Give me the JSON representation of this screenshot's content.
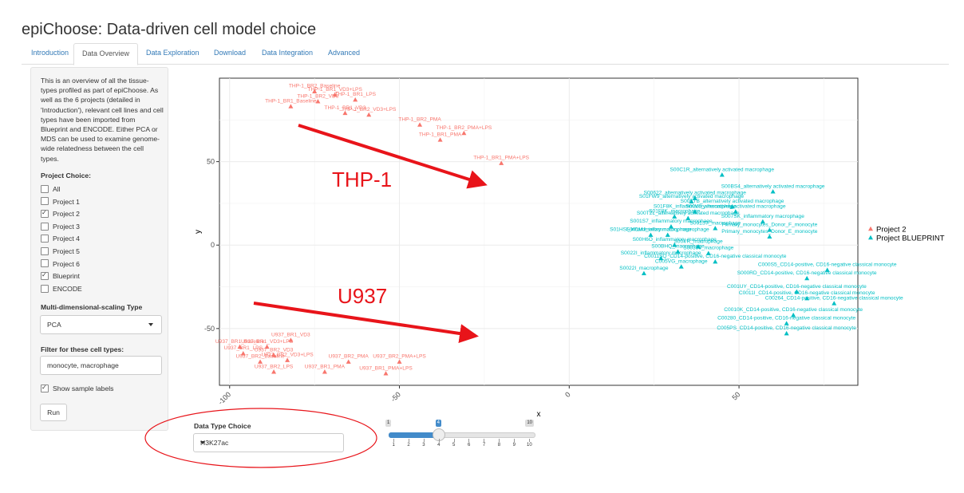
{
  "app_title": "epiChoose: Data-driven cell model choice",
  "tabs": [
    "Introduction",
    "Data Overview",
    "Data Exploration",
    "Download",
    "Data Integration",
    "Advanced"
  ],
  "active_tab": "Data Overview",
  "sidebar": {
    "description": "This is an overview of all the tissue-types profiled as part of epiChoose. As well as the 6 projects (detailed in 'Introduction'), relevant cell lines and cell types have been imported from Blueprint and ENCODE. Either PCA or MDS can be used to examine genome-wide relatedness between the cell types.",
    "project_choice_label": "Project Choice:",
    "projects": [
      {
        "label": "All",
        "checked": false
      },
      {
        "label": "Project 1",
        "checked": false
      },
      {
        "label": "Project 2",
        "checked": true
      },
      {
        "label": "Project 3",
        "checked": false
      },
      {
        "label": "Project 4",
        "checked": false
      },
      {
        "label": "Project 5",
        "checked": false
      },
      {
        "label": "Project 6",
        "checked": false
      },
      {
        "label": "Blueprint",
        "checked": true
      },
      {
        "label": "ENCODE",
        "checked": false
      }
    ],
    "mds_label": "Multi-dimensional-scaling Type",
    "mds_value": "PCA",
    "filter_label": "Filter for these cell types:",
    "filter_value": "monocyte, macrophage",
    "show_labels": "Show sample labels",
    "show_labels_checked": true,
    "run_label": "Run"
  },
  "data_type": {
    "label": "Data Type Choice",
    "value": "H3K27ac"
  },
  "slider": {
    "min": 1,
    "max": 10,
    "value": 4,
    "ticks": [
      "1",
      "2",
      "3",
      "4",
      "5",
      "6",
      "7",
      "8",
      "9",
      "10"
    ]
  },
  "annotations": {
    "thp1": "THP-1",
    "u937": "U937"
  },
  "colors": {
    "project2": "#f8766d",
    "blueprint": "#00bfc4",
    "annotation": "#e8141a"
  },
  "chart_data": {
    "type": "scatter",
    "xlabel": "x",
    "ylabel": "y",
    "xlim": [
      -103,
      85
    ],
    "ylim": [
      -84,
      100
    ],
    "xticks": [
      -100,
      -50,
      0,
      50
    ],
    "yticks": [
      -50,
      0,
      50
    ],
    "legend": "right",
    "grid": true,
    "series": [
      {
        "name": "Project 2",
        "points": [
          {
            "label": "THP-1_BR2_Baseline",
            "x": -75.0,
            "y": 92.0
          },
          {
            "label": "THP-1_BR1_VD3+LPS",
            "x": -69.0,
            "y": 90.0
          },
          {
            "label": "THP-1_BR2_VD3",
            "x": -74.0,
            "y": 86.0
          },
          {
            "label": "THP-1_BR1_LPS",
            "x": -63.0,
            "y": 87.0
          },
          {
            "label": "THP-1_BR1_Baseline",
            "x": -82.0,
            "y": 83.0
          },
          {
            "label": "THP-1_BR1_VD3",
            "x": -66.0,
            "y": 79.0
          },
          {
            "label": "THP-1_BR2_VD3+LPS",
            "x": -59.0,
            "y": 78.0
          },
          {
            "label": "THP-1_BR2_PMA",
            "x": -44.0,
            "y": 72.0
          },
          {
            "label": "THP-1_BR2_PMA+LPS",
            "x": -31.0,
            "y": 67.0
          },
          {
            "label": "THP-1_BR1_PMA",
            "x": -38.0,
            "y": 63.0
          },
          {
            "label": "THP-1_BR1_PMA+LPS",
            "x": -20.0,
            "y": 49.0
          },
          {
            "label": "U937_BR1_VD3",
            "x": -82.0,
            "y": -57.0
          },
          {
            "label": "U937_BR1_Baseline",
            "x": -97.0,
            "y": -61.0
          },
          {
            "label": "U937_BR1_VD3+LPS",
            "x": -89.0,
            "y": -61.0
          },
          {
            "label": "U937_BR1_LPS",
            "x": -96.0,
            "y": -65.0
          },
          {
            "label": "U937_BR2_VD3",
            "x": -87.0,
            "y": -66.0
          },
          {
            "label": "U937_BR2_VD3+LPS",
            "x": -83.0,
            "y": -69.0
          },
          {
            "label": "U937_BR2_Baseline",
            "x": -91.0,
            "y": -70.0
          },
          {
            "label": "U937_BR2_LPS",
            "x": -87.0,
            "y": -76.0
          },
          {
            "label": "U937_BR2_PMA",
            "x": -65.0,
            "y": -70.0
          },
          {
            "label": "U937_BR1_PMA",
            "x": -72.0,
            "y": -76.0
          },
          {
            "label": "U937_BR2_PMA+LPS",
            "x": -50.0,
            "y": -70.0
          },
          {
            "label": "U937_BR1_PMA+LPS",
            "x": -54.0,
            "y": -77.0
          }
        ]
      },
      {
        "name": "Project BLUEPRINT",
        "points": [
          {
            "label": "S00C1R_alternatively activated macrophage",
            "x": 45.0,
            "y": 42.0
          },
          {
            "label": "S00BS4_alternatively activated macrophage",
            "x": 60.0,
            "y": 32.0
          },
          {
            "label": "S00622_alternatively activated macrophage",
            "x": 37.0,
            "y": 28.0
          },
          {
            "label": "S01FW9_alternatively activated macrophage",
            "x": 36.0,
            "y": 26.0
          },
          {
            "label": "S00FTB_alternatively activated macrophage",
            "x": 48.0,
            "y": 23.0
          },
          {
            "label": "S01F8K_inflammatory macrophage",
            "x": 37.0,
            "y": 20.0
          },
          {
            "label": "S00VII_alternatively activated macrophage",
            "x": 49.0,
            "y": 20.0
          },
          {
            "label": "S01F8K_macrophage",
            "x": 31.0,
            "y": 17.0
          },
          {
            "label": "S00T2L_alternatively activated macrophage",
            "x": 35.0,
            "y": 16.0
          },
          {
            "label": "S007SK_inflammatory macrophage",
            "x": 57.0,
            "y": 14.0
          },
          {
            "label": "S001S7_inflammatory macrophage",
            "x": 30.0,
            "y": 11.0
          },
          {
            "label": "S001S7_macrophage",
            "x": 43.0,
            "y": 10.0
          },
          {
            "label": "Primary_monocytes_Donor_F_monocyte",
            "x": 59.0,
            "y": 9.0
          },
          {
            "label": "S01HSI_inflammatory macrophage",
            "x": 24.0,
            "y": 6.0
          },
          {
            "label": "S001MJ_inflammatory macrophage",
            "x": 29.0,
            "y": 6.0
          },
          {
            "label": "Primary_monocytes_Donor_E_monocyte",
            "x": 59.0,
            "y": 5.0
          },
          {
            "label": "S00H6O_inflammatory macrophage",
            "x": 31.0,
            "y": 0.0
          },
          {
            "label": "S00VR_macrophage",
            "x": 38.0,
            "y": -1.0
          },
          {
            "label": "S00BHQ_macrophage",
            "x": 32.0,
            "y": -4.0
          },
          {
            "label": "S00390_macrophage",
            "x": 41.0,
            "y": -5.0
          },
          {
            "label": "S0022I_inflammatory macrophage",
            "x": 27.0,
            "y": -8.0
          },
          {
            "label": "C0011SQ_CD14-positive, CD16-negative classical monocyte",
            "x": 43.0,
            "y": -10.0
          },
          {
            "label": "C005VG_macrophage",
            "x": 33.0,
            "y": -13.0
          },
          {
            "label": "C000S5_CD14-positive, CD16-negative classical monocyte",
            "x": 76.0,
            "y": -15.0
          },
          {
            "label": "S0022I_macrophage",
            "x": 22.0,
            "y": -17.0
          },
          {
            "label": "S000RD_CD14-positive, CD16-negative classical monocyte",
            "x": 70.0,
            "y": -20.0
          },
          {
            "label": "C001UY_CD14-positive, CD16-negative classical monocyte",
            "x": 67.0,
            "y": -28.0
          },
          {
            "label": "C0011I_CD14-positive, CD16-negative classical monocyte",
            "x": 70.0,
            "y": -32.0
          },
          {
            "label": "C00264_CD14-positive, CD16-negative classical monocyte",
            "x": 78.0,
            "y": -35.0
          },
          {
            "label": "C0010K_CD14-positive, CD16-negative classical monocyte",
            "x": 66.0,
            "y": -42.0
          },
          {
            "label": "C00280_CD14-positive, CD16-negative classical monocyte",
            "x": 64.0,
            "y": -47.0
          },
          {
            "label": "C005PS_CD14-positive, CD16-negative classical monocyte",
            "x": 64.0,
            "y": -53.0
          }
        ]
      }
    ]
  }
}
